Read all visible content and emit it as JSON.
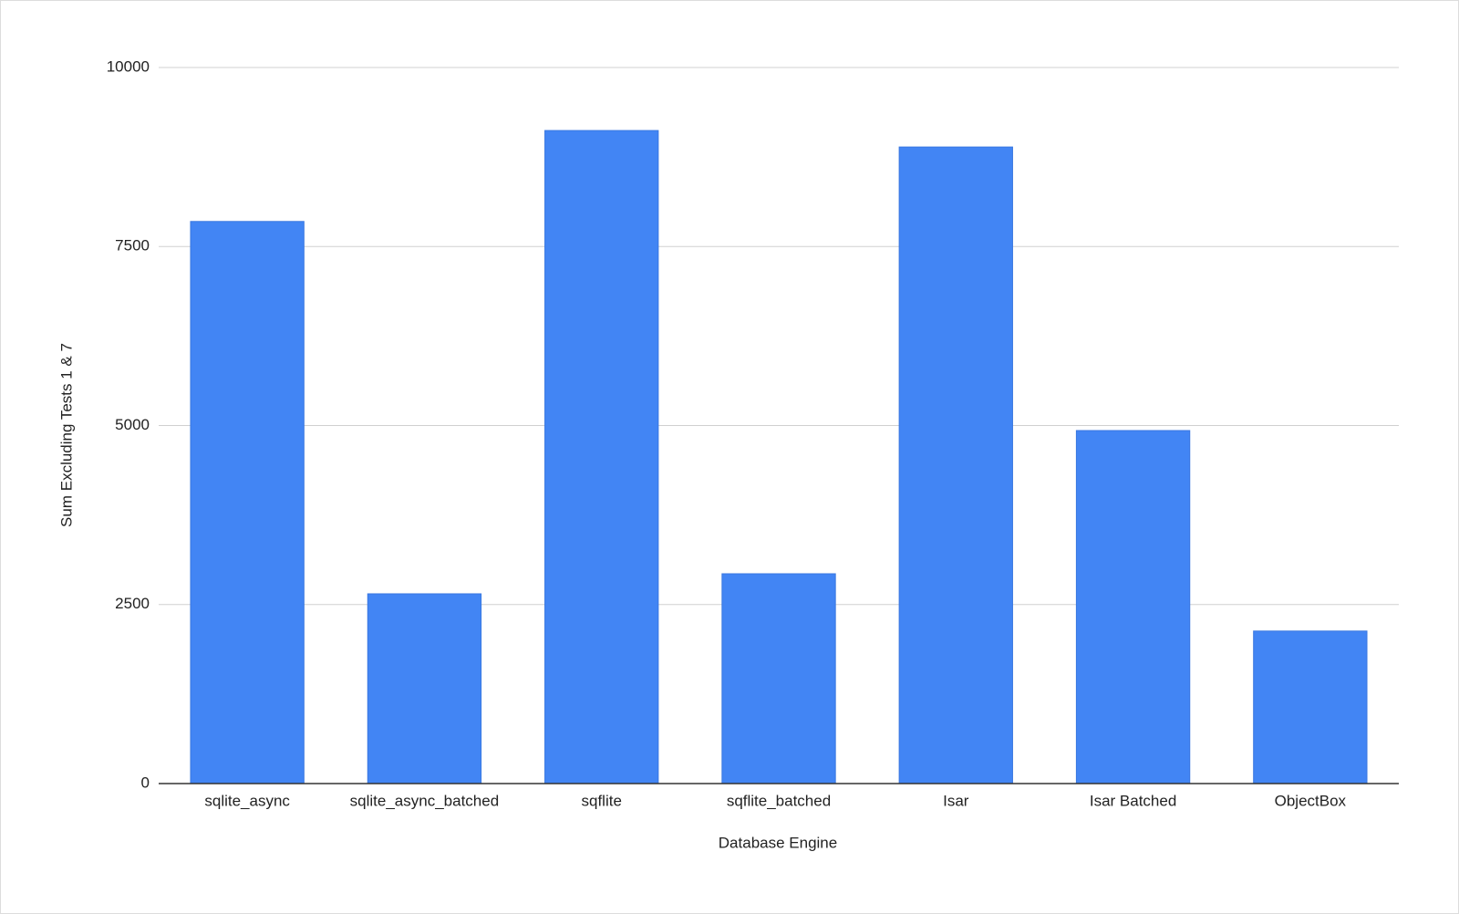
{
  "chart_data": {
    "type": "bar",
    "x_label": "Database Engine",
    "y_label": "Sum Excluding Tests 1 & 7",
    "categories": [
      "sqlite_async",
      "sqlite_async_batched",
      "sqflite",
      "sqflite_batched",
      "Isar",
      "Isar Batched",
      "ObjectBox"
    ],
    "values": [
      7850,
      2650,
      9120,
      2930,
      8890,
      4930,
      2130
    ],
    "color": "#4285f4",
    "ylim": [
      0,
      10000
    ],
    "yticks": [
      0,
      2500,
      5000,
      7500,
      10000
    ],
    "grid": true
  }
}
